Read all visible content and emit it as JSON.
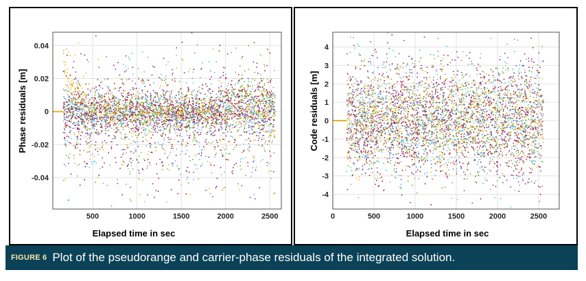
{
  "caption": {
    "figure_label": "FIGURE 6",
    "text": "Plot of the pseudorange and carrier-phase residuals of the integrated solution."
  },
  "series_colors": [
    "#a2142f",
    "#7e2f8e",
    "#77ac30",
    "#4dbeee",
    "#edb120"
  ],
  "chart_data": [
    {
      "type": "scatter",
      "xlabel": "Elapsed time in sec",
      "ylabel": "Phase residuals [m]",
      "xlim": [
        50,
        2630
      ],
      "ylim": [
        -0.059,
        0.048
      ],
      "xticks": [
        500,
        1000,
        1500,
        2000,
        2500
      ],
      "xtick_labels": [
        "500",
        "1000",
        "1500",
        "2000",
        "2500"
      ],
      "yticks": [
        0.04,
        0.02,
        0,
        -0.02,
        -0.04
      ],
      "ytick_labels": [
        "0.04",
        "0.02",
        "0",
        "-0.02",
        "-0.04"
      ],
      "grid": true,
      "data_range_x": [
        170,
        2560
      ],
      "spread": 0.012
    },
    {
      "type": "scatter",
      "xlabel": "Elapsed time in sec",
      "ylabel": "Code residuals [m]",
      "xlim": [
        0,
        2750
      ],
      "ylim": [
        -4.8,
        4.8
      ],
      "xticks": [
        0,
        500,
        1000,
        1500,
        2000,
        2500
      ],
      "xtick_labels": [
        "0",
        "500",
        "1000",
        "1500",
        "2000",
        "2500"
      ],
      "yticks": [
        4,
        3,
        2,
        1,
        0,
        -1,
        -2,
        -3,
        -4
      ],
      "ytick_labels": [
        "4",
        "3",
        "2",
        "1",
        "0",
        "-1",
        "-2",
        "-3",
        "-4"
      ],
      "grid": true,
      "data_range_x": [
        170,
        2560
      ],
      "spread": 1.6
    }
  ]
}
